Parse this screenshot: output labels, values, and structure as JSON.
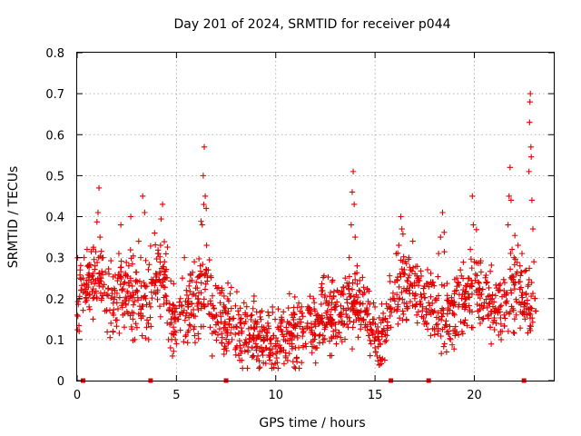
{
  "chart_data": {
    "type": "scatter",
    "title": "Day 201 of 2024, SRMTID for receiver p044",
    "xlabel": "GPS time / hours",
    "ylabel": "SRMTID / TECUs",
    "xlim": [
      0,
      24
    ],
    "ylim": [
      0,
      0.8
    ],
    "x_ticks": [
      0,
      5,
      10,
      15,
      20
    ],
    "x_tick_labels": [
      "0",
      "5",
      "10",
      "15",
      "20"
    ],
    "y_ticks": [
      0,
      0.1,
      0.2,
      0.3,
      0.4,
      0.5,
      0.6,
      0.7,
      0.8
    ],
    "y_tick_labels": [
      "0",
      "0.1",
      "0.2",
      "0.3",
      "0.4",
      "0.5",
      "0.6",
      "0.7",
      "0.8"
    ],
    "grid": true,
    "marker": "plus",
    "color": "#e00000",
    "trend": {
      "x": [
        0,
        0.5,
        1,
        1.5,
        2,
        2.5,
        3,
        3.5,
        4,
        4.5,
        5,
        5.5,
        6,
        6.5,
        7,
        7.5,
        8,
        8.5,
        9,
        9.5,
        10,
        10.5,
        11,
        11.5,
        12,
        12.5,
        13,
        13.5,
        14,
        14.5,
        15,
        15.5,
        16,
        16.5,
        17,
        17.5,
        18,
        18.5,
        19,
        19.5,
        20,
        20.5,
        21,
        21.5,
        22,
        22.5,
        23
      ],
      "y": [
        0.19,
        0.22,
        0.24,
        0.2,
        0.21,
        0.22,
        0.2,
        0.19,
        0.25,
        0.22,
        0.12,
        0.18,
        0.19,
        0.22,
        0.16,
        0.15,
        0.13,
        0.12,
        0.11,
        0.1,
        0.09,
        0.1,
        0.12,
        0.13,
        0.14,
        0.16,
        0.15,
        0.17,
        0.2,
        0.18,
        0.1,
        0.12,
        0.2,
        0.24,
        0.22,
        0.2,
        0.18,
        0.15,
        0.18,
        0.2,
        0.21,
        0.19,
        0.17,
        0.18,
        0.22,
        0.2,
        0.19
      ]
    },
    "spikes": [
      {
        "x": 1.1,
        "y": 0.47
      },
      {
        "x": 2.7,
        "y": 0.4
      },
      {
        "x": 3.3,
        "y": 0.45
      },
      {
        "x": 4.3,
        "y": 0.43
      },
      {
        "x": 6.4,
        "y": 0.57
      },
      {
        "x": 13.9,
        "y": 0.51
      },
      {
        "x": 16.3,
        "y": 0.4
      },
      {
        "x": 18.4,
        "y": 0.41
      },
      {
        "x": 19.9,
        "y": 0.45
      },
      {
        "x": 21.8,
        "y": 0.52
      },
      {
        "x": 22.8,
        "y": 0.7
      }
    ],
    "points": [
      [
        0.0,
        0.16
      ],
      [
        0.1,
        0.12
      ],
      [
        0.15,
        0.27
      ],
      [
        0.2,
        0.22
      ],
      [
        0.3,
        0.25
      ],
      [
        0.35,
        0.3
      ],
      [
        0.45,
        0.2
      ],
      [
        0.5,
        0.32
      ],
      [
        0.6,
        0.18
      ],
      [
        0.7,
        0.24
      ],
      [
        0.8,
        0.15
      ],
      [
        0.9,
        0.28
      ],
      [
        1.0,
        0.2
      ],
      [
        1.05,
        0.41
      ],
      [
        1.1,
        0.47
      ],
      [
        1.15,
        0.35
      ],
      [
        1.2,
        0.25
      ],
      [
        1.3,
        0.3
      ],
      [
        1.4,
        0.17
      ],
      [
        1.5,
        0.21
      ],
      [
        1.6,
        0.26
      ],
      [
        1.7,
        0.14
      ],
      [
        1.8,
        0.12
      ],
      [
        1.9,
        0.22
      ],
      [
        2.0,
        0.19
      ],
      [
        2.1,
        0.31
      ],
      [
        2.2,
        0.38
      ],
      [
        2.3,
        0.16
      ],
      [
        2.4,
        0.24
      ],
      [
        2.5,
        0.2
      ],
      [
        2.6,
        0.28
      ],
      [
        2.7,
        0.4
      ],
      [
        2.8,
        0.15
      ],
      [
        2.9,
        0.1
      ],
      [
        3.0,
        0.22
      ],
      [
        3.1,
        0.34
      ],
      [
        3.2,
        0.3
      ],
      [
        3.3,
        0.45
      ],
      [
        3.4,
        0.41
      ],
      [
        3.5,
        0.13
      ],
      [
        3.6,
        0.1
      ],
      [
        3.7,
        0.18
      ],
      [
        3.8,
        0.24
      ],
      [
        3.9,
        0.36
      ],
      [
        4.0,
        0.26
      ],
      [
        4.1,
        0.31
      ],
      [
        4.2,
        0.33
      ],
      [
        4.3,
        0.43
      ],
      [
        4.4,
        0.29
      ],
      [
        4.5,
        0.19
      ],
      [
        4.6,
        0.1
      ],
      [
        4.7,
        0.08
      ],
      [
        4.8,
        0.06
      ],
      [
        4.9,
        0.12
      ],
      [
        5.0,
        0.09
      ],
      [
        5.1,
        0.15
      ],
      [
        5.2,
        0.2
      ],
      [
        5.3,
        0.25
      ],
      [
        5.4,
        0.3
      ],
      [
        5.5,
        0.22
      ],
      [
        5.6,
        0.18
      ],
      [
        5.7,
        0.26
      ],
      [
        5.8,
        0.21
      ],
      [
        5.9,
        0.29
      ],
      [
        6.0,
        0.24
      ],
      [
        6.1,
        0.2
      ],
      [
        6.2,
        0.28
      ],
      [
        6.3,
        0.38
      ],
      [
        6.35,
        0.5
      ],
      [
        6.4,
        0.57
      ],
      [
        6.45,
        0.45
      ],
      [
        6.5,
        0.42
      ],
      [
        6.6,
        0.27
      ],
      [
        6.7,
        0.13
      ],
      [
        6.8,
        0.06
      ],
      [
        6.9,
        0.12
      ],
      [
        7.0,
        0.16
      ],
      [
        7.1,
        0.14
      ],
      [
        7.2,
        0.19
      ],
      [
        7.3,
        0.22
      ],
      [
        7.4,
        0.18
      ],
      [
        7.5,
        0.12
      ],
      [
        7.6,
        0.09
      ],
      [
        7.7,
        0.15
      ],
      [
        7.8,
        0.1
      ],
      [
        7.9,
        0.13
      ],
      [
        8.0,
        0.08
      ],
      [
        8.1,
        0.17
      ],
      [
        8.2,
        0.14
      ],
      [
        8.3,
        0.12
      ],
      [
        8.4,
        0.19
      ],
      [
        8.5,
        0.1
      ],
      [
        8.6,
        0.07
      ],
      [
        8.7,
        0.11
      ],
      [
        8.8,
        0.16
      ],
      [
        8.9,
        0.13
      ],
      [
        9.0,
        0.09
      ],
      [
        9.1,
        0.06
      ],
      [
        9.2,
        0.12
      ],
      [
        9.3,
        0.17
      ],
      [
        9.4,
        0.1
      ],
      [
        9.5,
        0.08
      ],
      [
        9.6,
        0.14
      ],
      [
        9.7,
        0.05
      ],
      [
        9.8,
        0.04
      ],
      [
        9.9,
        0.11
      ],
      [
        10.0,
        0.09
      ],
      [
        10.1,
        0.13
      ],
      [
        10.2,
        0.07
      ],
      [
        10.3,
        0.15
      ],
      [
        10.4,
        0.1
      ],
      [
        10.5,
        0.06
      ],
      [
        10.6,
        0.12
      ],
      [
        10.7,
        0.09
      ],
      [
        10.8,
        0.16
      ],
      [
        10.9,
        0.13
      ],
      [
        11.0,
        0.08
      ],
      [
        11.1,
        0.11
      ],
      [
        11.2,
        0.15
      ],
      [
        11.3,
        0.18
      ],
      [
        11.4,
        0.12
      ],
      [
        11.5,
        0.09
      ],
      [
        11.6,
        0.14
      ],
      [
        11.7,
        0.17
      ],
      [
        11.8,
        0.13
      ],
      [
        11.9,
        0.2
      ],
      [
        12.0,
        0.11
      ],
      [
        12.1,
        0.16
      ],
      [
        12.2,
        0.14
      ],
      [
        12.3,
        0.21
      ],
      [
        12.4,
        0.1
      ],
      [
        12.5,
        0.13
      ],
      [
        12.6,
        0.17
      ],
      [
        12.7,
        0.19
      ],
      [
        12.8,
        0.15
      ],
      [
        12.9,
        0.12
      ],
      [
        13.0,
        0.18
      ],
      [
        13.1,
        0.22
      ],
      [
        13.2,
        0.16
      ],
      [
        13.3,
        0.14
      ],
      [
        13.4,
        0.21
      ],
      [
        13.5,
        0.25
      ],
      [
        13.6,
        0.19
      ],
      [
        13.7,
        0.3
      ],
      [
        13.8,
        0.38
      ],
      [
        13.85,
        0.46
      ],
      [
        13.9,
        0.51
      ],
      [
        13.95,
        0.43
      ],
      [
        14.0,
        0.35
      ],
      [
        14.1,
        0.28
      ],
      [
        14.2,
        0.22
      ],
      [
        14.3,
        0.17
      ],
      [
        14.4,
        0.21
      ],
      [
        14.5,
        0.13
      ],
      [
        14.6,
        0.16
      ],
      [
        14.7,
        0.11
      ],
      [
        14.8,
        0.09
      ],
      [
        14.9,
        0.14
      ],
      [
        15.0,
        0.08
      ],
      [
        15.1,
        0.06
      ],
      [
        15.2,
        0.1
      ],
      [
        15.3,
        0.05
      ],
      [
        15.4,
        0.12
      ],
      [
        15.5,
        0.15
      ],
      [
        15.6,
        0.11
      ],
      [
        15.7,
        0.18
      ],
      [
        15.8,
        0.13
      ],
      [
        15.9,
        0.2
      ],
      [
        16.0,
        0.24
      ],
      [
        16.1,
        0.21
      ],
      [
        16.2,
        0.33
      ],
      [
        16.3,
        0.4
      ],
      [
        16.35,
        0.37
      ],
      [
        16.4,
        0.29
      ],
      [
        16.5,
        0.26
      ],
      [
        16.6,
        0.22
      ],
      [
        16.7,
        0.3
      ],
      [
        16.8,
        0.27
      ],
      [
        16.9,
        0.34
      ],
      [
        17.0,
        0.2
      ],
      [
        17.1,
        0.16
      ],
      [
        17.2,
        0.25
      ],
      [
        17.3,
        0.21
      ],
      [
        17.4,
        0.18
      ],
      [
        17.5,
        0.23
      ],
      [
        17.6,
        0.14
      ],
      [
        17.7,
        0.19
      ],
      [
        17.8,
        0.11
      ],
      [
        17.9,
        0.24
      ],
      [
        18.0,
        0.17
      ],
      [
        18.1,
        0.2
      ],
      [
        18.2,
        0.31
      ],
      [
        18.3,
        0.35
      ],
      [
        18.4,
        0.41
      ],
      [
        18.5,
        0.09
      ],
      [
        18.6,
        0.07
      ],
      [
        18.7,
        0.12
      ],
      [
        18.8,
        0.1
      ],
      [
        18.9,
        0.19
      ],
      [
        19.0,
        0.16
      ],
      [
        19.1,
        0.22
      ],
      [
        19.2,
        0.18
      ],
      [
        19.3,
        0.27
      ],
      [
        19.4,
        0.21
      ],
      [
        19.5,
        0.14
      ],
      [
        19.6,
        0.2
      ],
      [
        19.7,
        0.25
      ],
      [
        19.8,
        0.32
      ],
      [
        19.9,
        0.45
      ],
      [
        19.95,
        0.38
      ],
      [
        20.0,
        0.29
      ],
      [
        20.1,
        0.22
      ],
      [
        20.2,
        0.17
      ],
      [
        20.3,
        0.21
      ],
      [
        20.4,
        0.15
      ],
      [
        20.5,
        0.19
      ],
      [
        20.6,
        0.24
      ],
      [
        20.7,
        0.16
      ],
      [
        20.8,
        0.13
      ],
      [
        20.9,
        0.2
      ],
      [
        21.0,
        0.17
      ],
      [
        21.1,
        0.14
      ],
      [
        21.2,
        0.22
      ],
      [
        21.3,
        0.18
      ],
      [
        21.4,
        0.12
      ],
      [
        21.5,
        0.16
      ],
      [
        21.6,
        0.21
      ],
      [
        21.7,
        0.38
      ],
      [
        21.75,
        0.45
      ],
      [
        21.8,
        0.52
      ],
      [
        21.85,
        0.44
      ],
      [
        21.9,
        0.32
      ],
      [
        22.0,
        0.3
      ],
      [
        22.1,
        0.26
      ],
      [
        22.2,
        0.33
      ],
      [
        22.3,
        0.28
      ],
      [
        22.4,
        0.31
      ],
      [
        22.5,
        0.18
      ],
      [
        22.55,
        0.15
      ],
      [
        22.6,
        0.21
      ],
      [
        22.65,
        0.16
      ],
      [
        22.7,
        0.23
      ],
      [
        22.75,
        0.51
      ],
      [
        22.78,
        0.63
      ],
      [
        22.8,
        0.68
      ],
      [
        22.82,
        0.7
      ],
      [
        22.85,
        0.57
      ],
      [
        22.9,
        0.44
      ],
      [
        22.95,
        0.37
      ],
      [
        23.0,
        0.29
      ],
      [
        23.05,
        0.2
      ],
      [
        23.1,
        0.17
      ]
    ],
    "gap_markers": [
      0.3,
      3.7,
      7.5,
      15.8,
      17.7,
      22.5
    ],
    "legend": "none"
  }
}
